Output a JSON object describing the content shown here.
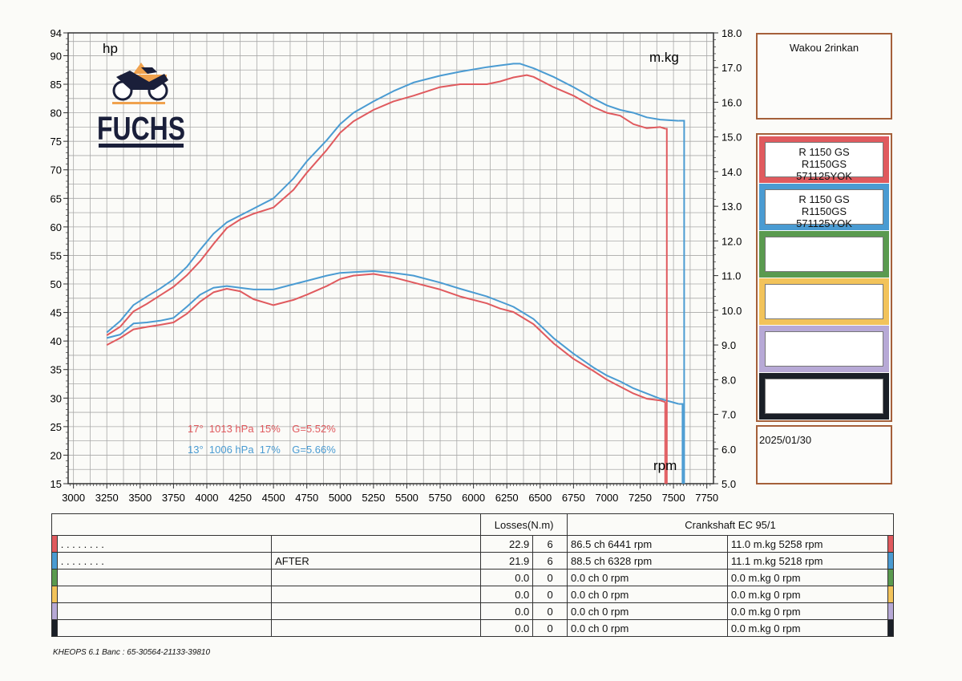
{
  "chart_data": {
    "type": "line",
    "xlabel": "",
    "x_ticks": [
      3000,
      3250,
      3500,
      3750,
      4000,
      4250,
      4500,
      4750,
      5000,
      5250,
      5500,
      5750,
      6000,
      6250,
      6500,
      6750,
      7000,
      7250,
      7500,
      7750
    ],
    "xlim": [
      2960,
      7800
    ],
    "y_left": {
      "label": "hp",
      "ylim": [
        15,
        94
      ],
      "ticks": [
        15,
        20,
        25,
        30,
        35,
        40,
        45,
        50,
        55,
        60,
        65,
        70,
        75,
        80,
        85,
        90,
        94
      ]
    },
    "y_right": {
      "label": "m.kg",
      "ylim": [
        5.0,
        18.0
      ],
      "ticks": [
        "5.0",
        "6.0",
        "7.0",
        "8.0",
        "9.0",
        "10.0",
        "11.0",
        "12.0",
        "13.0",
        "14.0",
        "15.0",
        "16.0",
        "17.0",
        "18.0"
      ]
    },
    "x_unit_label": "rpm",
    "grid": true,
    "series": [
      {
        "run": 1,
        "quantity": "power",
        "axis": "left",
        "color": "#e05a5e",
        "x": [
          3250,
          3350,
          3450,
          3550,
          3650,
          3750,
          3850,
          3950,
          4050,
          4150,
          4250,
          4350,
          4500,
          4650,
          4750,
          4900,
          5000,
          5100,
          5250,
          5400,
          5550,
          5750,
          5900,
          6100,
          6200,
          6300,
          6400,
          6450,
          6600,
          6750,
          6900,
          7000,
          7100,
          7200,
          7300,
          7400,
          7440
        ],
        "y": [
          41.0,
          42.5,
          45.2,
          46.5,
          48.0,
          49.5,
          51.5,
          54.0,
          57.0,
          59.8,
          61.3,
          62.3,
          63.4,
          66.5,
          69.5,
          73.5,
          76.5,
          78.5,
          80.5,
          82.0,
          83.0,
          84.5,
          85.0,
          85.0,
          85.5,
          86.2,
          86.6,
          86.3,
          84.5,
          83.0,
          81.0,
          80.0,
          79.5,
          78.0,
          77.3,
          77.5,
          77.2
        ]
      },
      {
        "run": 2,
        "quantity": "power",
        "axis": "left",
        "color": "#4a9bd2",
        "x": [
          3250,
          3350,
          3450,
          3550,
          3650,
          3750,
          3850,
          3950,
          4050,
          4150,
          4250,
          4350,
          4500,
          4650,
          4750,
          4900,
          5000,
          5100,
          5250,
          5400,
          5550,
          5750,
          5900,
          6100,
          6200,
          6300,
          6350,
          6450,
          6600,
          6750,
          6900,
          7000,
          7100,
          7200,
          7300,
          7400,
          7540
        ],
        "y": [
          41.5,
          43.5,
          46.3,
          47.8,
          49.2,
          50.8,
          53.0,
          56.0,
          58.8,
          60.8,
          62.0,
          63.2,
          65.0,
          68.5,
          71.5,
          75.2,
          78.0,
          80.0,
          82.0,
          83.8,
          85.3,
          86.5,
          87.2,
          88.0,
          88.3,
          88.6,
          88.6,
          87.8,
          86.3,
          84.5,
          82.5,
          81.3,
          80.5,
          80.0,
          79.2,
          78.8,
          78.6
        ]
      },
      {
        "run": 1,
        "quantity": "torque",
        "axis": "right",
        "color": "#e05a5e",
        "x": [
          3250,
          3350,
          3450,
          3550,
          3650,
          3750,
          3850,
          3950,
          4050,
          4150,
          4250,
          4350,
          4500,
          4650,
          4750,
          4900,
          5000,
          5100,
          5250,
          5400,
          5550,
          5750,
          5900,
          6100,
          6200,
          6300,
          6450,
          6600,
          6750,
          6900,
          7000,
          7100,
          7200,
          7300,
          7400,
          7440
        ],
        "y": [
          9.0,
          9.2,
          9.45,
          9.52,
          9.58,
          9.65,
          9.9,
          10.25,
          10.52,
          10.62,
          10.55,
          10.32,
          10.15,
          10.3,
          10.45,
          10.7,
          10.9,
          11.0,
          11.05,
          10.95,
          10.8,
          10.6,
          10.4,
          10.2,
          10.05,
          9.95,
          9.6,
          9.05,
          8.6,
          8.25,
          8.0,
          7.8,
          7.6,
          7.45,
          7.4,
          7.35
        ]
      },
      {
        "run": 2,
        "quantity": "torque",
        "axis": "right",
        "color": "#4a9bd2",
        "x": [
          3250,
          3350,
          3450,
          3550,
          3650,
          3750,
          3850,
          3950,
          4050,
          4150,
          4250,
          4350,
          4500,
          4650,
          4750,
          4900,
          5000,
          5100,
          5250,
          5400,
          5550,
          5750,
          5900,
          6100,
          6200,
          6300,
          6450,
          6600,
          6750,
          6900,
          7000,
          7100,
          7200,
          7300,
          7400,
          7540
        ],
        "y": [
          9.2,
          9.3,
          9.62,
          9.65,
          9.7,
          9.78,
          10.1,
          10.45,
          10.65,
          10.7,
          10.65,
          10.6,
          10.6,
          10.75,
          10.85,
          11.0,
          11.08,
          11.1,
          11.13,
          11.08,
          11.0,
          10.8,
          10.62,
          10.4,
          10.25,
          10.1,
          9.75,
          9.2,
          8.75,
          8.35,
          8.12,
          7.95,
          7.75,
          7.6,
          7.45,
          7.3
        ]
      }
    ],
    "drop_lines": [
      {
        "color": "#e05a5e",
        "x": 7450
      },
      {
        "color": "#4a9bd2",
        "x": 7580
      }
    ],
    "conditions": [
      {
        "color": "#e05a5e",
        "text": "17°  1013 hPa  15%    G=5.52%"
      },
      {
        "color": "#4a9bd2",
        "text": "13°  1006 hPa  17%    G=5.66%"
      }
    ]
  },
  "logo": {
    "brand": "FUCHS"
  },
  "header_box": {
    "text": "Wakou 2rinkan"
  },
  "runs_legend": [
    {
      "color": "#e05a5e",
      "lines": [
        "R 1150 GS",
        "R1150GS",
        "571125YOK"
      ]
    },
    {
      "color": "#4a9bd2",
      "lines": [
        "R 1150 GS",
        "R1150GS",
        "571125YOK"
      ]
    },
    {
      "color": "#5a9a4f",
      "lines": []
    },
    {
      "color": "#f2c35b",
      "lines": []
    },
    {
      "color": "#b7a9d6",
      "lines": []
    },
    {
      "color": "#1a1f27",
      "lines": []
    }
  ],
  "date_box": {
    "text": "2025/01/30"
  },
  "table": {
    "losses_header": "Losses(N.m)",
    "crankshaft_header": "Crankshaft EC 95/1",
    "rows": [
      {
        "color": "#e05a5e",
        "name": ". . . . . . . .",
        "note": "",
        "loss1": "22.9",
        "loss2": "6",
        "power": "86.5 ch 6441 rpm",
        "torque": "11.0 m.kg 5258 rpm"
      },
      {
        "color": "#4a9bd2",
        "name": ". . . . . . . .",
        "note": "AFTER",
        "loss1": "21.9",
        "loss2": "6",
        "power": "88.5 ch 6328 rpm",
        "torque": "11.1 m.kg 5218 rpm"
      },
      {
        "color": "#5a9a4f",
        "name": "",
        "note": "",
        "loss1": "0.0",
        "loss2": "0",
        "power": "0.0 ch 0 rpm",
        "torque": "0.0 m.kg 0 rpm"
      },
      {
        "color": "#f2c35b",
        "name": "",
        "note": "",
        "loss1": "0.0",
        "loss2": "0",
        "power": "0.0 ch 0 rpm",
        "torque": "0.0 m.kg 0 rpm"
      },
      {
        "color": "#b7a9d6",
        "name": "",
        "note": "",
        "loss1": "0.0",
        "loss2": "0",
        "power": "0.0 ch 0 rpm",
        "torque": "0.0 m.kg 0 rpm"
      },
      {
        "color": "#1a1f27",
        "name": "",
        "note": "",
        "loss1": "0.0",
        "loss2": "0",
        "power": "0.0 ch 0 rpm",
        "torque": "0.0 m.kg 0 rpm"
      }
    ]
  },
  "footer": {
    "text": "KHEOPS 6.1  Banc : 65-30564-21133-39810"
  }
}
